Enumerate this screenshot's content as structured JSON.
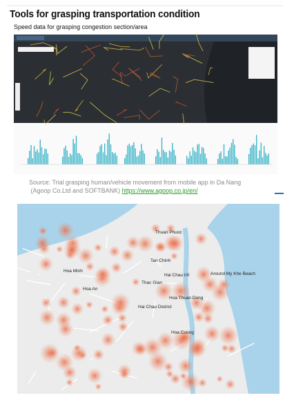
{
  "header": {
    "title": "Tools for grasping transportation condition",
    "subtitle": "Speed data for grasping congestion section/area"
  },
  "source": {
    "line1": "Source: Trial grasping human/vehicle movement from mobile app in Da Nang",
    "line2": "(Agoop Co.Ltd  and SOFTBANK)",
    "link": "https://www.agoop.co.jp/en/"
  },
  "map": {
    "labels": [
      "Thuan Phuoc",
      "Tan Chinh",
      "Hoa Minh",
      "Hai Chau I/II",
      "Around My Khe Beach",
      "Hoa An",
      "Thac Gian",
      "Hoa Thuan Dong",
      "Hai Chau District",
      "Hoa Cuong"
    ]
  }
}
